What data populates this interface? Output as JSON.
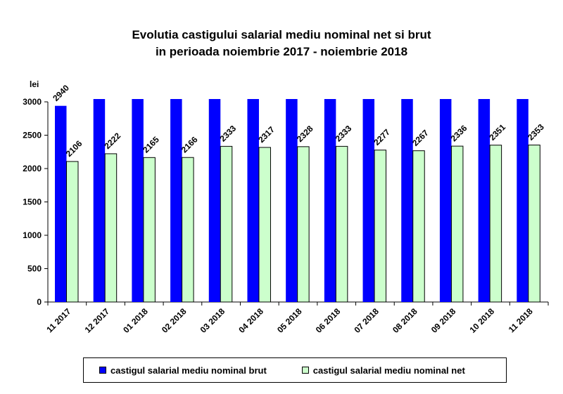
{
  "chart_data": {
    "type": "bar",
    "title": "Evolutia castigului salarial mediu nominal net si brut",
    "subtitle": "in perioada noiembrie 2017 - noiembrie 2018",
    "ylabel": "lei",
    "xlabel": "",
    "ylim": [
      0,
      3000
    ],
    "yticks": [
      "0",
      "500",
      "1000",
      "1500",
      "2000",
      "2500",
      "3000"
    ],
    "grid": false,
    "legend_position": "bottom",
    "categories": [
      "11 2017",
      "12 2017",
      "01 2018",
      "02 2018",
      "03 2018",
      "04 2018",
      "05 2018",
      "06 2018",
      "07 2018",
      "08 2018",
      "09 2018",
      "10 2018",
      "11 2018"
    ],
    "series": [
      {
        "name": "castigul salarial mediu nominal brut",
        "color": "#0000ff",
        "values": [
          2940,
          null,
          null,
          null,
          null,
          null,
          null,
          null,
          null,
          null,
          null,
          null,
          null
        ],
        "labels": [
          "2940",
          "",
          "",
          "",
          "",
          "",
          "",
          "",
          "",
          "",
          "",
          "",
          ""
        ],
        "note_clipped_above_axis": true
      },
      {
        "name": "castigul salarial mediu nominal net",
        "color": "#ccffcc",
        "values": [
          2106,
          2222,
          2165,
          2166,
          2333,
          2317,
          2328,
          2333,
          2277,
          2267,
          2336,
          2351,
          2353
        ],
        "labels": [
          "2106",
          "2222",
          "2165",
          "2166",
          "2333",
          "2317",
          "2328",
          "2333",
          "2277",
          "2267",
          "2336",
          "2351",
          "2353"
        ]
      }
    ]
  }
}
